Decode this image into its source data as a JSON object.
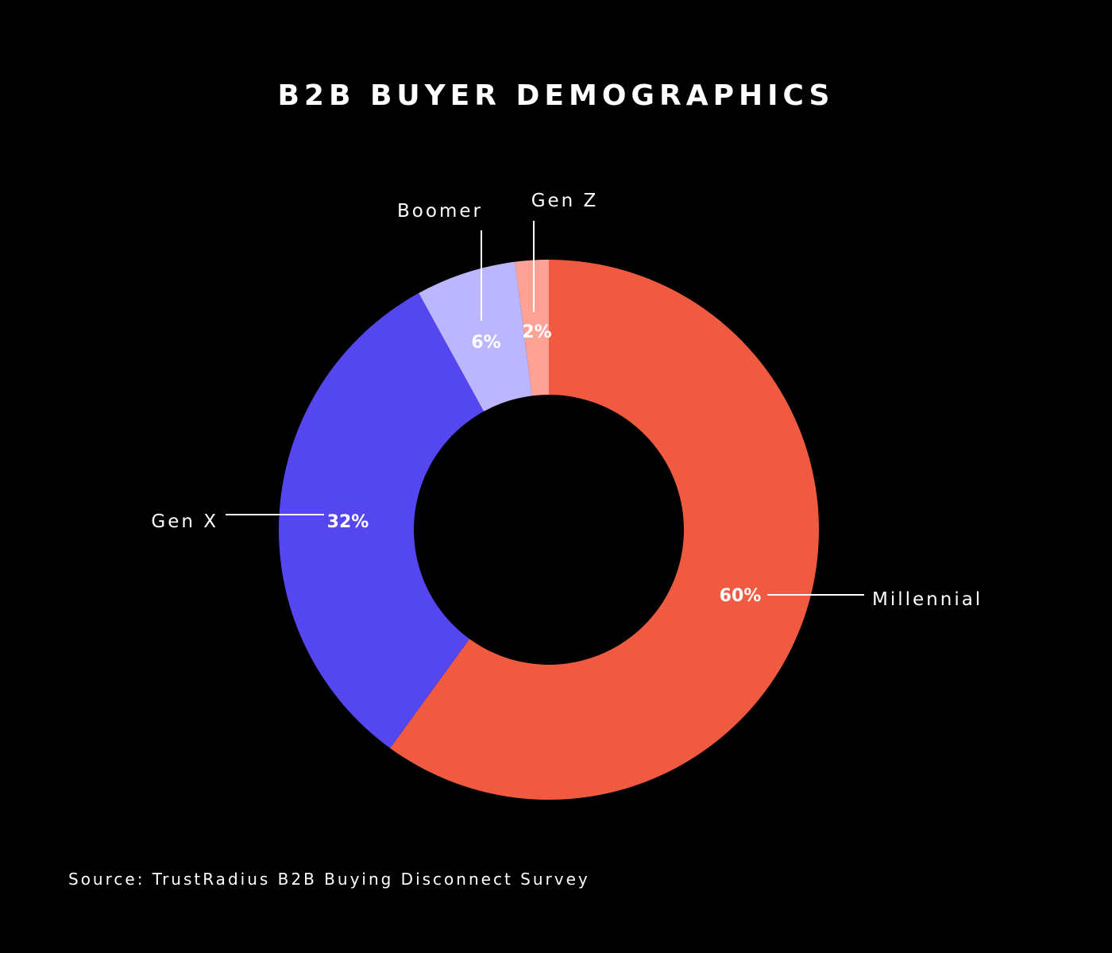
{
  "chart_data": {
    "type": "pie",
    "title": "B2B BUYER DEMOGRAPHICS",
    "source": "Source: TrustRadius B2B Buying Disconnect Survey",
    "slices": [
      {
        "label": "Millennial",
        "value": 60,
        "value_label": "60%",
        "color": "#F05A40"
      },
      {
        "label": "Gen X",
        "value": 32,
        "value_label": "32%",
        "color": "#5547F0"
      },
      {
        "label": "Boomer",
        "value": 6,
        "value_label": "6%",
        "color": "#BCB6FF"
      },
      {
        "label": "Gen Z",
        "value": 2,
        "value_label": "2%",
        "color": "#FFA296"
      }
    ],
    "donut": true,
    "start_angle": "top",
    "direction": "clockwise",
    "background_color": "#000000"
  }
}
